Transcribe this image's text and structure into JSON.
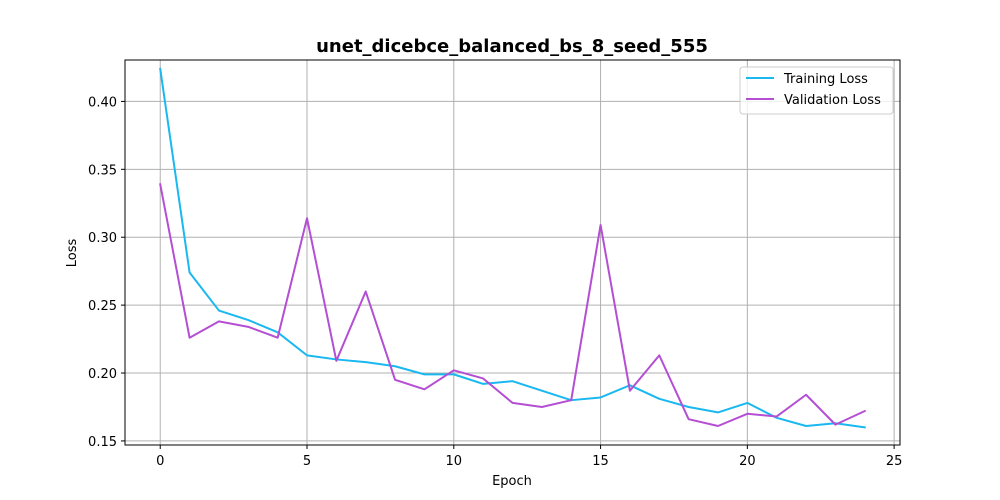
{
  "chart_data": {
    "type": "line",
    "title": "unet_dicebce_balanced_bs_8_seed_555",
    "xlabel": "Epoch",
    "ylabel": "Loss",
    "xlim": [
      -1.2,
      25.2
    ],
    "ylim": [
      0.147,
      0.4305
    ],
    "xticks": [
      0,
      5,
      10,
      15,
      20,
      25
    ],
    "yticks": [
      0.15,
      0.2,
      0.25,
      0.3,
      0.35,
      0.4
    ],
    "ytick_labels": [
      "0.15",
      "0.20",
      "0.25",
      "0.30",
      "0.35",
      "0.40"
    ],
    "grid": true,
    "legend_position": "top-right",
    "x": [
      0,
      1,
      2,
      3,
      4,
      5,
      6,
      7,
      8,
      9,
      10,
      11,
      12,
      13,
      14,
      15,
      16,
      17,
      18,
      19,
      20,
      21,
      22,
      23,
      24
    ],
    "series": [
      {
        "name": "Training Loss",
        "color": "#1ab8f0",
        "values": [
          0.424,
          0.274,
          0.246,
          0.239,
          0.23,
          0.213,
          0.21,
          0.208,
          0.205,
          0.199,
          0.199,
          0.192,
          0.194,
          0.187,
          0.18,
          0.182,
          0.191,
          0.181,
          0.175,
          0.171,
          0.178,
          0.167,
          0.161,
          0.163,
          0.16
        ]
      },
      {
        "name": "Validation Loss",
        "color": "#b44fd4",
        "values": [
          0.339,
          0.226,
          0.238,
          0.234,
          0.226,
          0.314,
          0.209,
          0.26,
          0.195,
          0.188,
          0.202,
          0.196,
          0.178,
          0.175,
          0.18,
          0.309,
          0.187,
          0.213,
          0.166,
          0.161,
          0.17,
          0.168,
          0.184,
          0.162,
          0.172
        ]
      }
    ]
  }
}
